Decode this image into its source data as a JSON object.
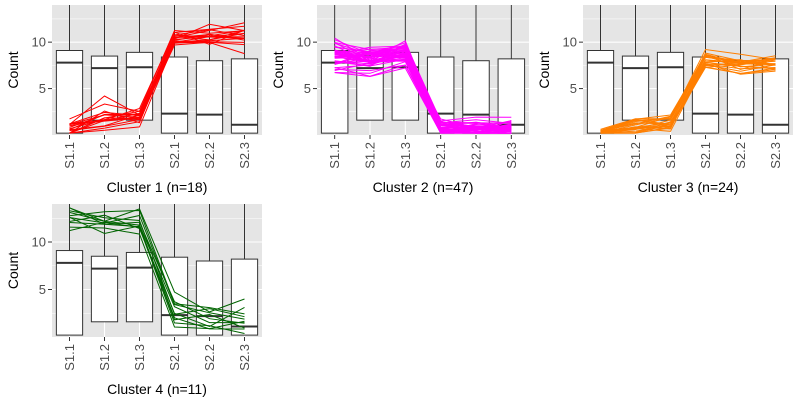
{
  "colors": {
    "panel_bg": "#e5e5e5",
    "grid": "#ffffff",
    "box_fill": "#ffffff",
    "box_stroke": "#333333",
    "cluster1": "#ff0000",
    "cluster2": "#ff00ff",
    "cluster3": "#ff7f00",
    "cluster4": "#006400"
  },
  "chart_data": [
    {
      "type": "line",
      "overlay": "boxplot",
      "xlabel": "Cluster 1 (n=18)",
      "ylabel": "Count",
      "categories": [
        "S1.1",
        "S1.2",
        "S1.3",
        "S2.1",
        "S2.2",
        "S2.3"
      ],
      "ylim": [
        0,
        14
      ],
      "yticks": [
        5,
        10
      ],
      "color_key": "cluster1",
      "boxes": [
        {
          "min": 0,
          "q1": 0.2,
          "median": 7.8,
          "q3": 9.1,
          "max": 14
        },
        {
          "min": 0,
          "q1": 1.6,
          "median": 7.2,
          "q3": 8.5,
          "max": 14
        },
        {
          "min": 0,
          "q1": 1.6,
          "median": 7.3,
          "q3": 8.9,
          "max": 14
        },
        {
          "min": 0,
          "q1": 0.2,
          "median": 2.3,
          "q3": 8.4,
          "max": 14
        },
        {
          "min": 0,
          "q1": 0.2,
          "median": 2.2,
          "q3": 8.0,
          "max": 14
        },
        {
          "min": 0,
          "q1": 0.2,
          "median": 1.1,
          "q3": 8.2,
          "max": 14
        }
      ],
      "profile_center": [
        0.5,
        1.9,
        2.0,
        10.4,
        10.6,
        10.9
      ],
      "profile_spread": [
        1.0,
        1.3,
        0.8,
        1.2,
        1.1,
        1.2
      ],
      "n_lines": 18
    },
    {
      "type": "line",
      "overlay": "boxplot",
      "xlabel": "Cluster 2 (n=47)",
      "ylabel": "Count",
      "categories": [
        "S1.1",
        "S1.2",
        "S1.3",
        "S2.1",
        "S2.2",
        "S2.3"
      ],
      "ylim": [
        0,
        14
      ],
      "yticks": [
        5,
        10
      ],
      "color_key": "cluster2",
      "boxes": [
        {
          "min": 0,
          "q1": 0.2,
          "median": 7.8,
          "q3": 9.1,
          "max": 14
        },
        {
          "min": 0,
          "q1": 1.6,
          "median": 7.2,
          "q3": 8.5,
          "max": 14
        },
        {
          "min": 0,
          "q1": 1.6,
          "median": 7.3,
          "q3": 8.9,
          "max": 14
        },
        {
          "min": 0,
          "q1": 0.2,
          "median": 2.3,
          "q3": 8.4,
          "max": 14
        },
        {
          "min": 0,
          "q1": 0.2,
          "median": 2.2,
          "q3": 8.0,
          "max": 14
        },
        {
          "min": 0,
          "q1": 0.2,
          "median": 1.1,
          "q3": 8.2,
          "max": 14
        }
      ],
      "profile_center": [
        8.5,
        8.2,
        8.9,
        0.9,
        0.6,
        0.7
      ],
      "profile_spread": [
        1.3,
        1.0,
        1.0,
        0.8,
        0.7,
        0.8
      ],
      "n_lines": 47
    },
    {
      "type": "line",
      "overlay": "boxplot",
      "xlabel": "Cluster 3 (n=24)",
      "ylabel": "Count",
      "categories": [
        "S1.1",
        "S1.2",
        "S1.3",
        "S2.1",
        "S2.2",
        "S2.3"
      ],
      "ylim": [
        0,
        14
      ],
      "yticks": [
        5,
        10
      ],
      "color_key": "cluster3",
      "boxes": [
        {
          "min": 0,
          "q1": 0.2,
          "median": 7.8,
          "q3": 9.1,
          "max": 14
        },
        {
          "min": 0,
          "q1": 1.6,
          "median": 7.2,
          "q3": 8.5,
          "max": 14
        },
        {
          "min": 0,
          "q1": 1.6,
          "median": 7.3,
          "q3": 8.9,
          "max": 14
        },
        {
          "min": 0,
          "q1": 0.2,
          "median": 2.3,
          "q3": 8.4,
          "max": 14
        },
        {
          "min": 0,
          "q1": 0.2,
          "median": 2.2,
          "q3": 8.0,
          "max": 14
        },
        {
          "min": 0,
          "q1": 0.2,
          "median": 1.1,
          "q3": 8.2,
          "max": 14
        }
      ],
      "profile_center": [
        0.3,
        0.9,
        1.3,
        7.9,
        7.5,
        7.6
      ],
      "profile_spread": [
        0.3,
        0.8,
        0.8,
        0.9,
        0.8,
        0.8
      ],
      "n_lines": 24
    },
    {
      "type": "line",
      "overlay": "boxplot",
      "xlabel": "Cluster 4 (n=11)",
      "ylabel": "Count",
      "categories": [
        "S1.1",
        "S1.2",
        "S1.3",
        "S2.1",
        "S2.2",
        "S2.3"
      ],
      "ylim": [
        0,
        14
      ],
      "yticks": [
        5,
        10
      ],
      "color_key": "cluster4",
      "boxes": [
        {
          "min": 0,
          "q1": 0.2,
          "median": 7.8,
          "q3": 9.1,
          "max": 14
        },
        {
          "min": 0,
          "q1": 1.6,
          "median": 7.2,
          "q3": 8.5,
          "max": 14
        },
        {
          "min": 0,
          "q1": 1.6,
          "median": 7.3,
          "q3": 8.9,
          "max": 14
        },
        {
          "min": 0,
          "q1": 0.2,
          "median": 2.3,
          "q3": 8.4,
          "max": 14
        },
        {
          "min": 0,
          "q1": 0.2,
          "median": 2.2,
          "q3": 8.0,
          "max": 14
        },
        {
          "min": 0,
          "q1": 0.2,
          "median": 1.1,
          "q3": 8.2,
          "max": 14
        }
      ],
      "profile_center": [
        12.4,
        12.3,
        12.1,
        2.7,
        2.2,
        2.0
      ],
      "profile_spread": [
        1.1,
        1.0,
        1.2,
        1.6,
        1.4,
        1.5
      ],
      "n_lines": 11
    }
  ]
}
